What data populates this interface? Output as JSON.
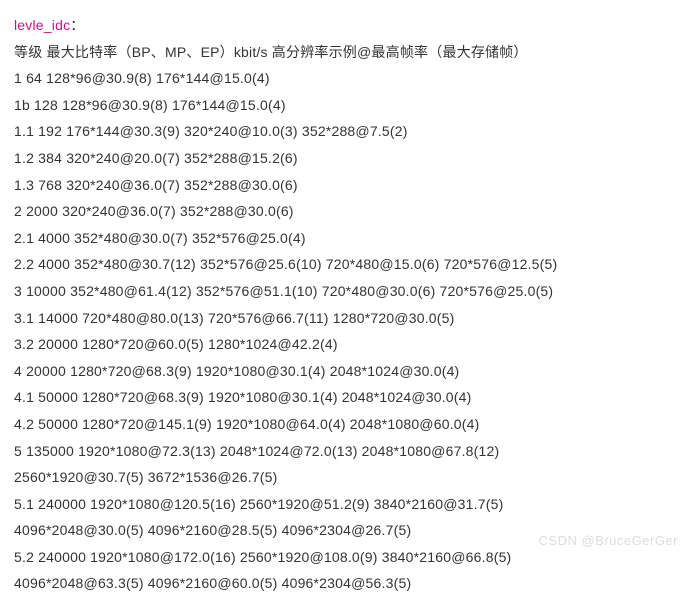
{
  "title": "levle_idc",
  "colon": "：",
  "header": "等级   最大比特率（BP、MP、EP）kbit/s  高分辨率示例@最高帧率（最大存储帧）",
  "rows": [
    "1   64  128*96@30.9(8)   176*144@15.0(4)",
    "1b   128  128*96@30.9(8)   176*144@15.0(4)",
    "1.1   192  176*144@30.3(9)   320*240@10.0(3)   352*288@7.5(2)",
    "1.2   384  320*240@20.0(7)   352*288@15.2(6)",
    "1.3   768  320*240@36.0(7)   352*288@30.0(6)",
    "2   2000  320*240@36.0(7)   352*288@30.0(6)",
    "2.1   4000  352*480@30.0(7)   352*576@25.0(4)",
    "2.2   4000  352*480@30.7(12)   352*576@25.6(10)   720*480@15.0(6)   720*576@12.5(5)",
    "3   10000  352*480@61.4(12)   352*576@51.1(10)   720*480@30.0(6)   720*576@25.0(5)",
    "3.1   14000  720*480@80.0(13)   720*576@66.7(11)   1280*720@30.0(5)",
    "3.2   20000  1280*720@60.0(5)   1280*1024@42.2(4)",
    "4   20000  1280*720@68.3(9)   1920*1080@30.1(4)   2048*1024@30.0(4)",
    "4.1   50000  1280*720@68.3(9)   1920*1080@30.1(4)   2048*1024@30.0(4)",
    "4.2   50000  1280*720@145.1(9)   1920*1080@64.0(4)   2048*1080@60.0(4)",
    "5   135000  1920*1080@72.3(13)   2048*1024@72.0(13)   2048*1080@67.8(12)",
    "2560*1920@30.7(5)   3672*1536@26.7(5)",
    "5.1   240000  1920*1080@120.5(16)   2560*1920@51.2(9)   3840*2160@31.7(5)",
    "4096*2048@30.0(5)   4096*2160@28.5(5)   4096*2304@26.7(5)",
    "5.2   240000  1920*1080@172.0(16)   2560*1920@108.0(9)   3840*2160@66.8(5)",
    "4096*2048@63.3(5)   4096*2160@60.0(5)   4096*2304@56.3(5)"
  ],
  "watermark": "CSDN @BruceGerGer"
}
